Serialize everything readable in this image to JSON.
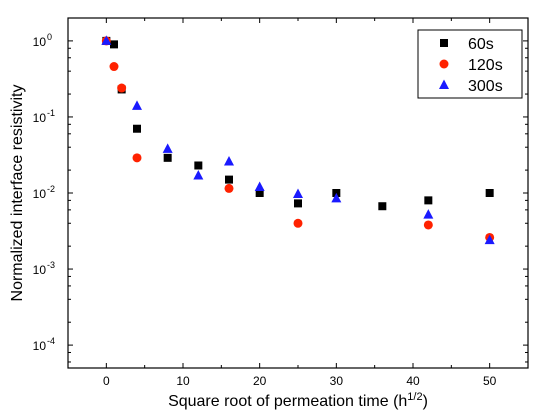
{
  "chart_data": {
    "type": "scatter",
    "title": "",
    "xlabel": {
      "main": "Square root of permeation time (h",
      "sup": "1/2",
      "tail": ")"
    },
    "ylabel": "Normalized interface resistivity",
    "xlim": [
      -5,
      55
    ],
    "ylim": [
      5e-05,
      2
    ],
    "yscale": "log",
    "xticks": [
      0,
      10,
      20,
      30,
      40,
      50
    ],
    "xtick_labels": [
      "0",
      "10",
      "20",
      "30",
      "40",
      "50"
    ],
    "yticks": [
      0.0001,
      0.001,
      0.01,
      0.1,
      1
    ],
    "ytick_labels": [
      {
        "base": "10",
        "exp": "-4"
      },
      {
        "base": "10",
        "exp": "-3"
      },
      {
        "base": "10",
        "exp": "-2"
      },
      {
        "base": "10",
        "exp": "-1"
      },
      {
        "base": "10",
        "exp": "0"
      }
    ],
    "grid": false,
    "legend_position": "top-right",
    "series": [
      {
        "name": "60s",
        "marker": "square",
        "color": "#000000",
        "points": [
          [
            0,
            1.0
          ],
          [
            1,
            0.9
          ],
          [
            2,
            0.23
          ],
          [
            4,
            0.07
          ],
          [
            8,
            0.029
          ],
          [
            12,
            0.023
          ],
          [
            16,
            0.015
          ],
          [
            20,
            0.01
          ],
          [
            25,
            0.0073
          ],
          [
            30,
            0.01
          ],
          [
            36,
            0.0067
          ],
          [
            42,
            0.008
          ],
          [
            50,
            0.01
          ]
        ]
      },
      {
        "name": "120s",
        "marker": "circle",
        "color": "#ff2200",
        "points": [
          [
            0,
            1.0
          ],
          [
            1,
            0.46
          ],
          [
            2,
            0.24
          ],
          [
            4,
            0.029
          ],
          [
            16,
            0.0115
          ],
          [
            25,
            0.004
          ],
          [
            42,
            0.0038
          ],
          [
            50,
            0.0026
          ]
        ]
      },
      {
        "name": "300s",
        "marker": "triangle",
        "color": "#1a1aff",
        "points": [
          [
            0,
            1.0
          ],
          [
            4,
            0.14
          ],
          [
            8,
            0.038
          ],
          [
            12,
            0.017
          ],
          [
            16,
            0.026
          ],
          [
            20,
            0.012
          ],
          [
            25,
            0.0097
          ],
          [
            30,
            0.0085
          ],
          [
            42,
            0.0052
          ],
          [
            50,
            0.0024
          ]
        ]
      }
    ]
  }
}
